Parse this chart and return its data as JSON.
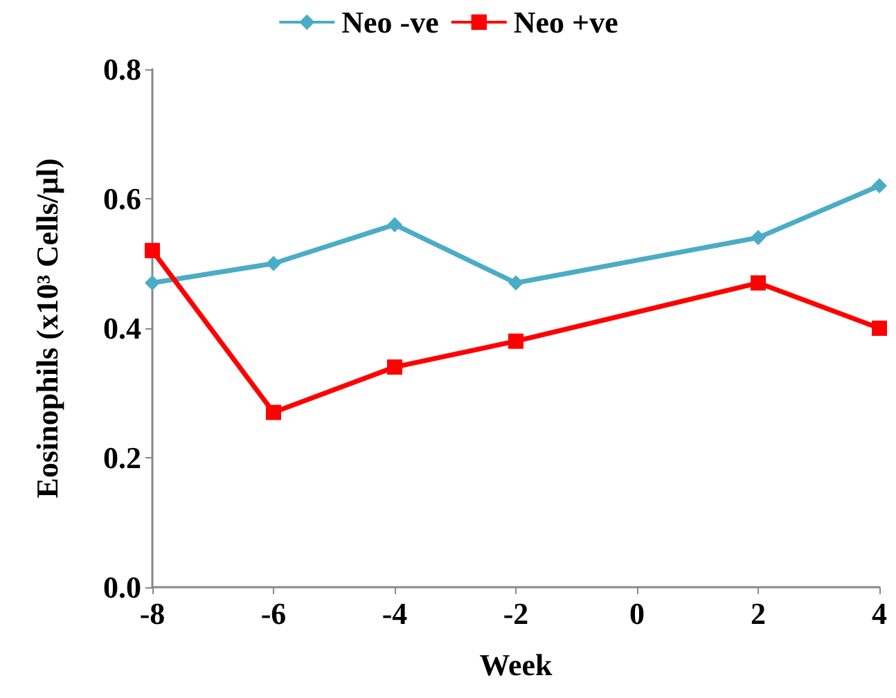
{
  "chart_data": {
    "type": "line",
    "xlabel": "Week",
    "ylabel": "Eosinophils (x10³ Cells/µl)",
    "x": [
      -8,
      -6,
      -4,
      -2,
      2,
      4
    ],
    "series": [
      {
        "name": "Neo -ve",
        "color": "#4bacc6",
        "marker": "diamond",
        "values": [
          0.47,
          0.5,
          0.56,
          0.47,
          0.54,
          0.62
        ]
      },
      {
        "name": "Neo +ve",
        "color": "#ff0000",
        "marker": "square",
        "values": [
          0.52,
          0.27,
          0.34,
          0.38,
          0.47,
          0.4
        ]
      }
    ],
    "xlim": [
      -8,
      4
    ],
    "xticks": [
      -8,
      -6,
      -4,
      -2,
      0,
      2,
      4
    ],
    "ylim": [
      0,
      0.8
    ],
    "yticks": [
      {
        "value": 0,
        "label": "0.0"
      },
      {
        "value": 0.2,
        "label": "0.2"
      },
      {
        "value": 0.4,
        "label": "0.4"
      },
      {
        "value": 0.6,
        "label": "0.6"
      },
      {
        "value": 0.8,
        "label": "0.8"
      }
    ],
    "grid": false,
    "legend": "top",
    "line_style": "solid"
  }
}
